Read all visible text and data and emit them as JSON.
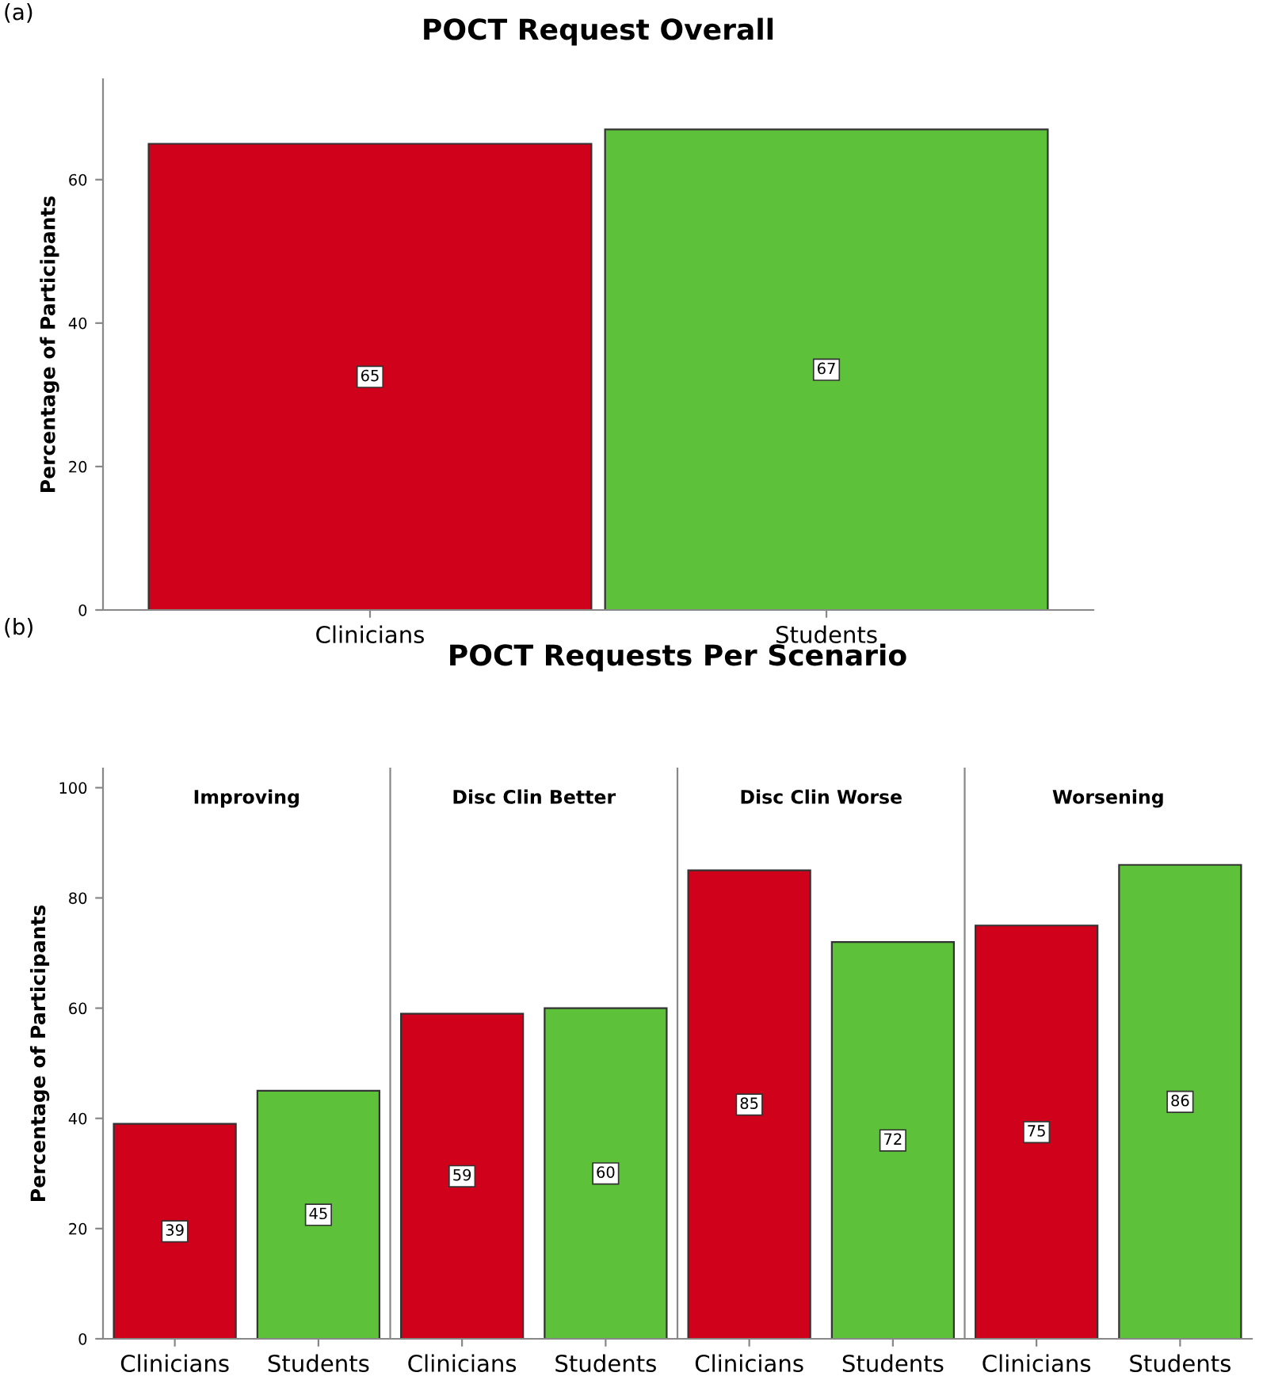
{
  "chart_data": [
    {
      "type": "bar",
      "title": "POCT Request Overall",
      "ylabel": "Percentage of Participants",
      "categories": [
        "Clinicians",
        "Students"
      ],
      "values": [
        65,
        67
      ],
      "colors": [
        "#d0021b",
        "#5ec13a"
      ],
      "data_labels": true,
      "ylim": [
        0,
        74
      ],
      "yticks": [
        0,
        20,
        40,
        60
      ],
      "annotations": [
        "(a)"
      ]
    },
    {
      "type": "bar",
      "title": "Improving",
      "ylabel": "Percentage of Participants",
      "categories": [
        "Clinicians",
        "Students"
      ],
      "values": [
        39,
        45
      ],
      "colors": [
        "#d0021b",
        "#5ec13a"
      ],
      "data_labels": true,
      "ylim": [
        0,
        103.5
      ],
      "yticks": [
        0,
        20,
        40,
        60,
        80,
        100
      ],
      "annotations": [
        "(b)",
        "POCT Requests Per Scenario"
      ]
    },
    {
      "type": "bar",
      "title": "Disc Clin Better",
      "categories": [
        "Clinicians",
        "Students"
      ],
      "values": [
        59,
        60
      ],
      "colors": [
        "#d0021b",
        "#5ec13a"
      ],
      "data_labels": true,
      "ylim": [
        0,
        103.5
      ],
      "yticks": [
        0,
        20,
        40,
        60,
        80,
        100
      ],
      "tick_labels": "x"
    },
    {
      "type": "bar",
      "title": "Disc Clin Worse",
      "categories": [
        "Clinicians",
        "Students"
      ],
      "values": [
        85,
        72
      ],
      "colors": [
        "#d0021b",
        "#5ec13a"
      ],
      "data_labels": true,
      "ylim": [
        0,
        103.5
      ],
      "yticks": [
        0,
        20,
        40,
        60,
        80,
        100
      ],
      "tick_labels": "x"
    },
    {
      "type": "bar",
      "title": "Worsening",
      "categories": [
        "Clinicians",
        "Students"
      ],
      "values": [
        75,
        86
      ],
      "colors": [
        "#d0021b",
        "#5ec13a"
      ],
      "data_labels": true,
      "ylim": [
        0,
        103.5
      ],
      "yticks": [
        0,
        20,
        40,
        60,
        80,
        100
      ],
      "tick_labels": "x"
    }
  ]
}
